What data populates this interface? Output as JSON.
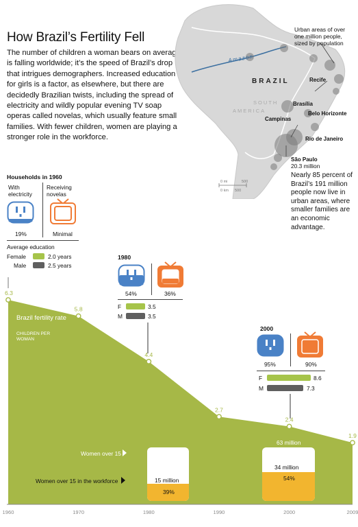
{
  "header": {
    "title": "How Brazil’s Fertility Fell",
    "intro": "The number of children a woman bears on average is falling worldwide; it’s the speed of Brazil’s drop that intrigues demographers. Increased education for girls is a factor, as elsewhere, but there are decidedly Brazilian twists, including the spread of electricity and wildly popular evening TV soap operas called novelas, which usually feature small families. With fewer children, women are playing a stronger role in the workforce."
  },
  "map": {
    "legend": "Urban areas of over one million people, sized by population",
    "country": "BRAZIL",
    "continent_1": "SOUTH",
    "continent_2": "AMERICA",
    "river": "Amazon",
    "cities": {
      "recife": "Recife",
      "brasilia": "Brasília",
      "belo": "Belo Horizonte",
      "campinas": "Campinas",
      "rio": "Rio de Janeiro",
      "sao": "São Paulo",
      "sao_pop": "20.3 million"
    },
    "scale_mi": "0 mi",
    "scale_mi_val": "500",
    "scale_km": "0 km",
    "scale_km_val": "500",
    "note": "Nearly 85 percent of Brazil’s 191 million people now live in urban areas, where smaller families are an economic advantage.",
    "colors": {
      "land": "#d8d8d8",
      "ocean": "#ffffff",
      "city": "#7a7a7a",
      "river": "#3b6fa0"
    }
  },
  "panel1960": {
    "heading": "Households in 1960",
    "elec_label": "With electricity",
    "tv_label": "Receiving novelas",
    "elec_value": "19%",
    "elec_fraction": 0.19,
    "tv_value": "Minimal",
    "edu_heading": "Average education",
    "female_label": "Female",
    "male_label": "Male",
    "female_value": "2.0 years",
    "male_value": "2.5 years"
  },
  "panel1980": {
    "year": "1980",
    "elec_value": "54%",
    "elec_fraction": 0.54,
    "tv_value": "36%",
    "tv_fraction": 0.36,
    "f_label": "F",
    "m_label": "M",
    "f_value": "3.5",
    "m_value": "3.5",
    "f_years": 3.5,
    "m_years": 3.5
  },
  "panel2000": {
    "year": "2000",
    "elec_value": "95%",
    "elec_fraction": 0.95,
    "tv_value": "90%",
    "tv_fraction": 0.9,
    "f_label": "F",
    "m_label": "M",
    "f_value": "8.6",
    "m_value": "7.3",
    "f_years": 8.6,
    "m_years": 7.3
  },
  "workforce": {
    "women_label": "Women over 15",
    "workforce_label": "Women over 15 in the workforce",
    "w1980_total": "38 million",
    "w1980_work": "15 million",
    "w1980_pct": "39%",
    "w1980_fraction": 0.39,
    "w2000_total": "63 million",
    "w2000_work": "34 million",
    "w2000_pct": "54%",
    "w2000_fraction": 0.54
  },
  "colors": {
    "fertility": "#a6b847",
    "fertility_label": "#a6b847",
    "electric": "#4a82c6",
    "tv": "#f07b35",
    "female": "#a6c44a",
    "male": "#5f5f5f",
    "workforce": "#f2b52f"
  },
  "chart_data": {
    "type": "area",
    "title": "",
    "series": [
      {
        "name": "Brazil fertility rate",
        "subtitle": "CHILDREN PER WOMAN",
        "x": [
          1960,
          1970,
          1980,
          1990,
          2000,
          2009
        ],
        "y": [
          6.3,
          5.8,
          4.4,
          2.7,
          2.4,
          1.9
        ],
        "labels": [
          "6.3",
          "5.8",
          "4.4",
          "2.7",
          "2.4",
          "1.9"
        ]
      }
    ],
    "x_ticks": [
      "1960",
      "1970",
      "1980",
      "1990",
      "2000",
      "2009"
    ],
    "xlim": [
      1960,
      2009
    ],
    "ylim": [
      0,
      6.3
    ],
    "grid": false,
    "legend": "none"
  }
}
